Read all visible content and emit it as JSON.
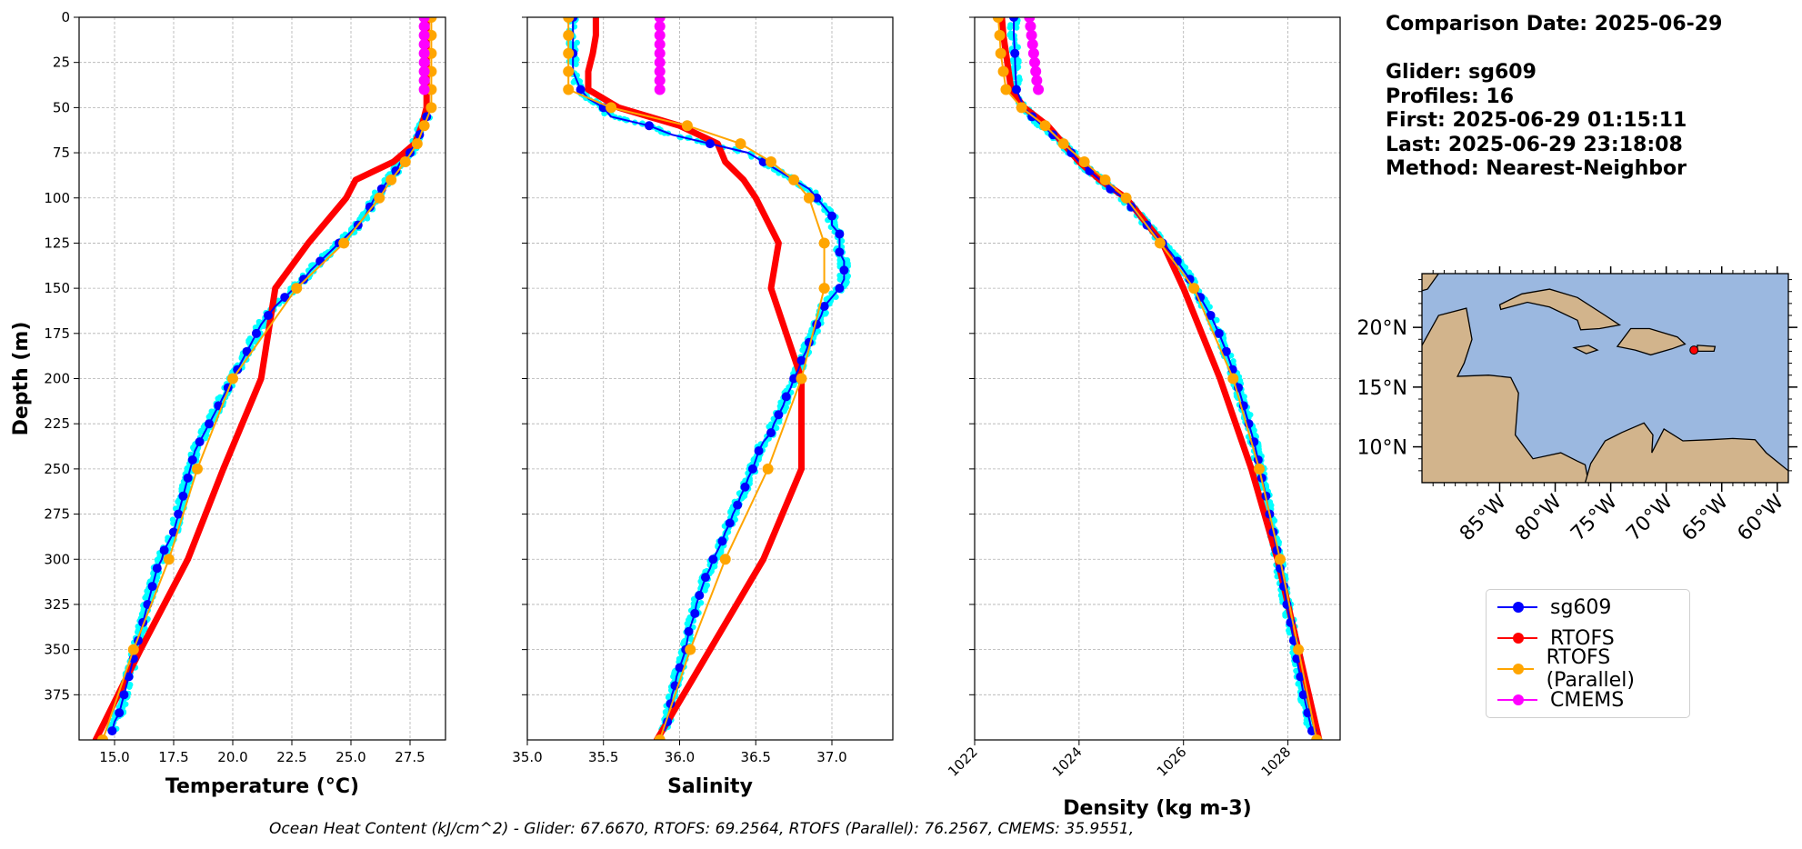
{
  "info": {
    "comparison_date": "Comparison Date: 2025-06-29",
    "glider": "Glider: sg609",
    "profiles": "Profiles: 16",
    "first": "First: 2025-06-29 01:15:11",
    "last": "Last: 2025-06-29 23:18:08",
    "method": "Method: Nearest-Neighbor"
  },
  "legend": [
    {
      "label": "sg609",
      "color": "#0000ff"
    },
    {
      "label": "RTOFS",
      "color": "#ff0000"
    },
    {
      "label": "RTOFS (Parallel)",
      "color": "#ffa500"
    },
    {
      "label": "CMEMS",
      "color": "#ff00ff"
    }
  ],
  "ohc_text": "Ocean Heat Content (kJ/cm^2) - Glider: 67.6670,  RTOFS: 69.2564,  RTOFS (Parallel): 76.2567,  CMEMS: 35.9551,",
  "colors": {
    "glider_scatter": "#00ffff",
    "ocean": "#9bb8e0",
    "land": "#d2b48c"
  },
  "map": {
    "lat_ticks": [
      "20°N",
      "15°N",
      "10°N"
    ],
    "lat_values": [
      20,
      15,
      10
    ],
    "lon_ticks": [
      "85°W",
      "80°W",
      "75°W",
      "70°W",
      "65°W",
      "60°W"
    ],
    "lon_values": [
      -85,
      -80,
      -75,
      -70,
      -65,
      -60
    ],
    "extent": {
      "lon": [
        -92,
        -59
      ],
      "lat": [
        7,
        24.5
      ]
    },
    "glider_position": {
      "lon": -67.5,
      "lat": 18.1
    }
  },
  "chart_data": [
    {
      "type": "line",
      "xlabel": "Temperature (°C)",
      "ylabel": "Depth (m)",
      "xlim": [
        13.5,
        29
      ],
      "ylim": [
        400,
        0
      ],
      "xticks": [
        15.0,
        17.5,
        20.0,
        22.5,
        25.0,
        27.5
      ],
      "xtick_labels": [
        "15.0",
        "17.5",
        "20.0",
        "22.5",
        "25.0",
        "27.5"
      ],
      "yticks": [
        0,
        25,
        50,
        75,
        100,
        125,
        150,
        175,
        200,
        225,
        250,
        275,
        300,
        325,
        350,
        375
      ],
      "grid": true,
      "series": [
        {
          "name": "sg609",
          "color": "#0000ff",
          "depth": [
            55,
            60,
            65,
            70,
            75,
            80,
            85,
            90,
            95,
            100,
            105,
            110,
            115,
            120,
            125,
            130,
            135,
            140,
            145,
            150,
            155,
            160,
            165,
            170,
            175,
            180,
            185,
            190,
            195,
            200,
            205,
            210,
            215,
            220,
            225,
            230,
            235,
            240,
            245,
            250,
            255,
            260,
            265,
            270,
            275,
            280,
            285,
            290,
            295,
            300,
            305,
            310,
            315,
            320,
            325,
            330,
            335,
            340,
            345,
            350,
            355,
            360,
            365,
            370,
            375,
            380,
            385,
            390,
            395
          ],
          "values": [
            28.2,
            28.0,
            27.9,
            27.7,
            27.5,
            27.1,
            26.9,
            26.6,
            26.3,
            26.0,
            25.8,
            25.6,
            25.3,
            24.9,
            24.5,
            24.1,
            23.7,
            23.3,
            23.0,
            22.6,
            22.2,
            21.8,
            21.5,
            21.2,
            21.0,
            20.8,
            20.6,
            20.4,
            20.2,
            20.0,
            19.8,
            19.6,
            19.4,
            19.2,
            19.0,
            18.8,
            18.6,
            18.4,
            18.3,
            18.2,
            18.1,
            18.0,
            17.9,
            17.8,
            17.7,
            17.6,
            17.5,
            17.3,
            17.1,
            17.0,
            16.8,
            16.7,
            16.6,
            16.5,
            16.4,
            16.3,
            16.2,
            16.1,
            16.0,
            15.9,
            15.8,
            15.7,
            15.6,
            15.5,
            15.4,
            15.3,
            15.2,
            15.0,
            14.9
          ]
        },
        {
          "name": "RTOFS",
          "color": "#ff0000",
          "depth": [
            0,
            10,
            20,
            30,
            40,
            50,
            60,
            70,
            80,
            90,
            100,
            125,
            150,
            200,
            250,
            300,
            350,
            400
          ],
          "values": [
            28.2,
            28.2,
            28.2,
            28.2,
            28.2,
            28.2,
            28.0,
            27.7,
            26.8,
            25.2,
            24.8,
            23.2,
            21.8,
            21.2,
            19.6,
            18.1,
            16.1,
            14.2
          ]
        },
        {
          "name": "RTOFS (Parallel)",
          "color": "#ffa500",
          "depth": [
            0,
            10,
            20,
            30,
            40,
            50,
            60,
            70,
            80,
            90,
            100,
            125,
            150,
            200,
            250,
            300,
            350,
            400
          ],
          "values": [
            28.4,
            28.4,
            28.4,
            28.4,
            28.4,
            28.4,
            28.1,
            27.8,
            27.3,
            26.7,
            26.2,
            24.7,
            22.7,
            20.0,
            18.5,
            17.3,
            15.8,
            14.5
          ]
        },
        {
          "name": "CMEMS",
          "color": "#ff00ff",
          "depth": [
            0,
            5,
            10,
            15,
            20,
            25,
            30,
            35,
            40
          ],
          "values": [
            28.1,
            28.1,
            28.1,
            28.1,
            28.1,
            28.1,
            28.1,
            28.1,
            28.1
          ]
        }
      ]
    },
    {
      "type": "line",
      "xlabel": "Salinity",
      "xlim": [
        35.0,
        37.4
      ],
      "ylim": [
        400,
        0
      ],
      "xticks": [
        35.0,
        35.5,
        36.0,
        36.5,
        37.0
      ],
      "xtick_labels": [
        "35.0",
        "35.5",
        "36.0",
        "36.5",
        "37.0"
      ],
      "grid": true,
      "series": [
        {
          "name": "sg609",
          "color": "#0000ff",
          "depth": [
            0,
            10,
            20,
            30,
            40,
            45,
            50,
            55,
            60,
            65,
            70,
            75,
            80,
            85,
            90,
            95,
            100,
            105,
            110,
            115,
            120,
            125,
            130,
            135,
            140,
            145,
            150,
            155,
            160,
            165,
            170,
            175,
            180,
            185,
            190,
            195,
            200,
            205,
            210,
            215,
            220,
            225,
            230,
            235,
            240,
            245,
            250,
            255,
            260,
            265,
            270,
            275,
            280,
            285,
            290,
            295,
            300,
            305,
            310,
            315,
            320,
            325,
            330,
            335,
            340,
            345,
            350,
            355,
            360,
            365,
            370,
            375,
            380,
            385,
            390,
            395
          ],
          "values": [
            35.3,
            35.3,
            35.3,
            35.3,
            35.35,
            35.4,
            35.5,
            35.55,
            35.8,
            35.95,
            36.2,
            36.45,
            36.55,
            36.65,
            36.75,
            36.85,
            36.9,
            36.95,
            37.0,
            37.0,
            37.05,
            37.05,
            37.05,
            37.08,
            37.08,
            37.08,
            37.05,
            37.0,
            36.95,
            36.93,
            36.9,
            36.88,
            36.85,
            36.83,
            36.8,
            36.78,
            36.75,
            36.73,
            36.7,
            36.68,
            36.65,
            36.62,
            36.6,
            36.55,
            36.52,
            36.5,
            36.48,
            36.45,
            36.43,
            36.4,
            36.38,
            36.35,
            36.33,
            36.3,
            36.28,
            36.25,
            36.22,
            36.2,
            36.17,
            36.15,
            36.13,
            36.11,
            36.1,
            36.08,
            36.06,
            36.05,
            36.04,
            36.02,
            36.0,
            35.98,
            35.97,
            35.95,
            35.94,
            35.93,
            35.92,
            35.9
          ]
        },
        {
          "name": "RTOFS",
          "color": "#ff0000",
          "depth": [
            0,
            10,
            20,
            30,
            40,
            50,
            60,
            70,
            80,
            90,
            100,
            125,
            150,
            200,
            250,
            300,
            350,
            400
          ],
          "values": [
            35.45,
            35.45,
            35.43,
            35.4,
            35.4,
            35.6,
            36.0,
            36.25,
            36.3,
            36.42,
            36.5,
            36.65,
            36.6,
            36.8,
            36.8,
            36.55,
            36.2,
            35.85
          ]
        },
        {
          "name": "RTOFS (Parallel)",
          "color": "#ffa500",
          "depth": [
            0,
            10,
            20,
            30,
            40,
            50,
            60,
            70,
            80,
            90,
            100,
            125,
            150,
            200,
            250,
            300,
            350,
            400
          ],
          "values": [
            35.27,
            35.27,
            35.27,
            35.27,
            35.27,
            35.55,
            36.05,
            36.4,
            36.6,
            36.75,
            36.85,
            36.95,
            36.95,
            36.8,
            36.58,
            36.3,
            36.07,
            35.87
          ]
        },
        {
          "name": "CMEMS",
          "color": "#ff00ff",
          "depth": [
            0,
            5,
            10,
            15,
            20,
            25,
            30,
            35,
            40
          ],
          "values": [
            35.87,
            35.87,
            35.87,
            35.87,
            35.87,
            35.87,
            35.87,
            35.87,
            35.87
          ]
        }
      ]
    },
    {
      "type": "line",
      "xlabel": "Density (kg m-3)",
      "xlim": [
        1022,
        1029
      ],
      "ylim": [
        400,
        0
      ],
      "xticks": [
        1022,
        1024,
        1026,
        1028
      ],
      "xtick_labels": [
        "1022",
        "1024",
        "1026",
        "1028"
      ],
      "grid": true,
      "series": [
        {
          "name": "sg609",
          "color": "#0000ff",
          "depth": [
            0,
            10,
            20,
            30,
            40,
            50,
            55,
            60,
            65,
            70,
            75,
            80,
            85,
            90,
            95,
            100,
            105,
            110,
            115,
            120,
            125,
            130,
            135,
            140,
            145,
            150,
            155,
            160,
            165,
            170,
            175,
            180,
            185,
            190,
            195,
            200,
            205,
            210,
            215,
            220,
            225,
            230,
            235,
            240,
            245,
            250,
            255,
            260,
            265,
            270,
            275,
            280,
            285,
            290,
            295,
            300,
            305,
            310,
            315,
            320,
            325,
            330,
            335,
            340,
            345,
            350,
            355,
            360,
            365,
            370,
            375,
            380,
            385,
            390,
            395
          ],
          "values": [
            1022.75,
            1022.75,
            1022.77,
            1022.78,
            1022.8,
            1022.95,
            1023.1,
            1023.3,
            1023.5,
            1023.7,
            1023.85,
            1024.0,
            1024.2,
            1024.4,
            1024.6,
            1024.85,
            1025.0,
            1025.15,
            1025.3,
            1025.45,
            1025.6,
            1025.75,
            1025.88,
            1026.0,
            1026.12,
            1026.22,
            1026.32,
            1026.42,
            1026.52,
            1026.6,
            1026.68,
            1026.75,
            1026.82,
            1026.88,
            1026.94,
            1027.0,
            1027.05,
            1027.1,
            1027.15,
            1027.2,
            1027.25,
            1027.3,
            1027.35,
            1027.39,
            1027.43,
            1027.47,
            1027.5,
            1027.54,
            1027.58,
            1027.61,
            1027.65,
            1027.68,
            1027.72,
            1027.75,
            1027.79,
            1027.82,
            1027.85,
            1027.88,
            1027.92,
            1027.95,
            1027.98,
            1028.01,
            1028.05,
            1028.08,
            1028.11,
            1028.14,
            1028.17,
            1028.2,
            1028.24,
            1028.27,
            1028.3,
            1028.34,
            1028.38,
            1028.42,
            1028.46
          ]
        },
        {
          "name": "RTOFS",
          "color": "#ff0000",
          "depth": [
            0,
            10,
            20,
            30,
            40,
            50,
            60,
            70,
            80,
            90,
            100,
            125,
            150,
            200,
            250,
            300,
            350,
            400
          ],
          "values": [
            1022.52,
            1022.55,
            1022.6,
            1022.65,
            1022.7,
            1022.95,
            1023.4,
            1023.7,
            1024.0,
            1024.4,
            1024.9,
            1025.6,
            1026.0,
            1026.7,
            1027.3,
            1027.8,
            1028.2,
            1028.6
          ]
        },
        {
          "name": "RTOFS (Parallel)",
          "color": "#ffa500",
          "depth": [
            0,
            10,
            20,
            30,
            40,
            50,
            60,
            70,
            80,
            90,
            100,
            125,
            150,
            200,
            250,
            300,
            350,
            400
          ],
          "values": [
            1022.45,
            1022.48,
            1022.5,
            1022.55,
            1022.6,
            1022.9,
            1023.35,
            1023.7,
            1024.1,
            1024.5,
            1024.9,
            1025.55,
            1026.2,
            1026.95,
            1027.45,
            1027.85,
            1028.2,
            1028.55
          ]
        },
        {
          "name": "CMEMS",
          "color": "#ff00ff",
          "depth": [
            0,
            5,
            10,
            15,
            20,
            25,
            30,
            35,
            40
          ],
          "values": [
            1023.05,
            1023.07,
            1023.09,
            1023.11,
            1023.13,
            1023.15,
            1023.17,
            1023.19,
            1023.22
          ]
        }
      ]
    }
  ]
}
